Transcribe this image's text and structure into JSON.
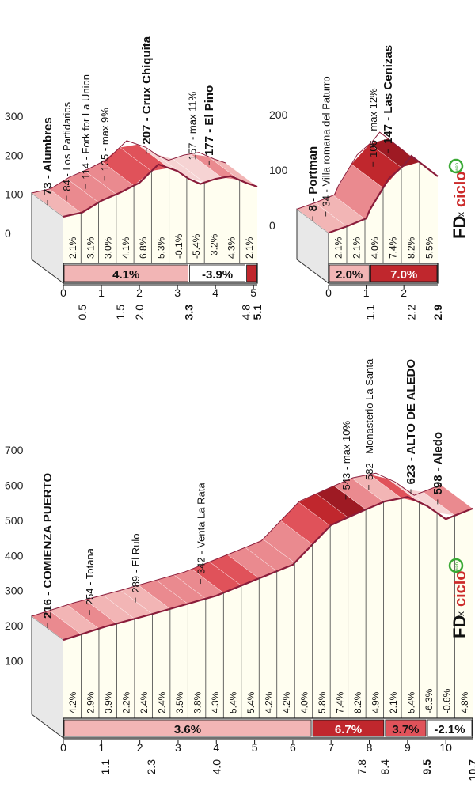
{
  "brand": {
    "text": "FD x Ciclo web",
    "accent": "#cc2b2b",
    "green": "#3aa935",
    "orange": "#f29400"
  },
  "colors": {
    "pale": "#f2b5b5",
    "mid": "#e0525a",
    "dark": "#c0272d",
    "darkest": "#9e1a23",
    "outline": "#8a1c3a",
    "body": "#fffef0",
    "side": "#e8e8e8"
  },
  "chart_data": [
    {
      "type": "area",
      "yticks": [
        "300",
        "200",
        "100",
        "0"
      ],
      "xticks": [
        "0",
        "1",
        "2",
        "3",
        "4",
        "5"
      ],
      "profile_x": [
        0,
        0.5,
        1.0,
        1.5,
        2.0,
        2.5,
        3.0,
        3.3,
        3.6,
        4.0,
        4.4,
        4.8,
        5.1
      ],
      "profile_y": [
        73,
        84,
        114,
        135,
        160,
        207,
        190,
        170,
        157,
        170,
        177,
        160,
        150
      ],
      "gradients": [
        "2.1%",
        "3.1%",
        "3.0%",
        "4.1%",
        "6.8%",
        "5.3%",
        "-0.1%",
        "-5.4%",
        "-3.2%",
        "4.3%",
        "2.1%"
      ],
      "segments": [
        {
          "label": "4.1%",
          "tone": "pale"
        },
        {
          "label": "-3.9%",
          "tone": "white"
        },
        {
          "label": "",
          "tone": "dark"
        }
      ],
      "km_marks": [
        "0.5",
        "1.5",
        "2.0",
        "3.3",
        "4.8",
        "5.1"
      ],
      "annotations": [
        "73 - Alumbres",
        "84 - Los Partidarios",
        "114 - Fork for La Union",
        "135 - max 9%",
        "207 - Crux Chiquita",
        "157 - max 11%",
        "177 - El Pino"
      ]
    },
    {
      "type": "area",
      "yticks": [
        "200",
        "100",
        "0"
      ],
      "xticks": [
        "0",
        "1",
        "2"
      ],
      "profile_x": [
        0,
        0.5,
        1.0,
        1.1,
        1.6,
        2.0,
        2.2,
        2.9
      ],
      "profile_y": [
        8,
        20,
        34,
        50,
        106,
        130,
        147,
        110
      ],
      "gradients": [
        "2.1%",
        "2.1%",
        "4.0%",
        "7.4%",
        "8.2%",
        "5.5%"
      ],
      "segments": [
        {
          "label": "2.0%",
          "tone": "pale"
        },
        {
          "label": "7.0%",
          "tone": "dark"
        }
      ],
      "km_marks": [
        "1.1",
        "2.2",
        "2.9"
      ],
      "annotations": [
        "8 - Portman",
        "34 - Villa romana del Paturro",
        "106 - max 12%",
        "147 - Las Cenizas"
      ]
    },
    {
      "type": "area",
      "yticks": [
        "700",
        "600",
        "500",
        "400",
        "300",
        "200",
        "100"
      ],
      "xticks": [
        "0",
        "1",
        "2",
        "3",
        "4",
        "5",
        "6",
        "7",
        "8",
        "9",
        "10"
      ],
      "profile_x": [
        0,
        1.1,
        2.3,
        4.0,
        6.0,
        7.0,
        7.8,
        8.4,
        9.0,
        9.5,
        10.0,
        10.7
      ],
      "profile_y": [
        216,
        254,
        289,
        342,
        430,
        543,
        582,
        610,
        623,
        598,
        560,
        590
      ],
      "gradients": [
        "4.2%",
        "2.9%",
        "3.9%",
        "2.2%",
        "2.4%",
        "2.4%",
        "3.5%",
        "3.8%",
        "4.3%",
        "5.4%",
        "5.4%",
        "4.2%",
        "4.2%",
        "4.0%",
        "5.8%",
        "7.4%",
        "8.2%",
        "4.9%",
        "2.1%",
        "5.4%",
        "-6.3%",
        "-0.6%",
        "4.8%"
      ],
      "segments": [
        {
          "label": "3.6%",
          "tone": "pale"
        },
        {
          "label": "6.7%",
          "tone": "dark"
        },
        {
          "label": "3.7%",
          "tone": "mid"
        },
        {
          "label": "-2.1%",
          "tone": "white"
        }
      ],
      "km_marks": [
        "1.1",
        "2.3",
        "4.0",
        "7.8",
        "8.4",
        "9.5",
        "10.7"
      ],
      "annotations": [
        "216 - COMIENZA PUERTO",
        "254 - Totana",
        "289 - El Rulo",
        "342 - Venta La Rata",
        "543 - max 10%",
        "582 - Monasterio La Santa",
        "623 - ALTO DE ALEDO",
        "598 - Aledo"
      ]
    }
  ]
}
